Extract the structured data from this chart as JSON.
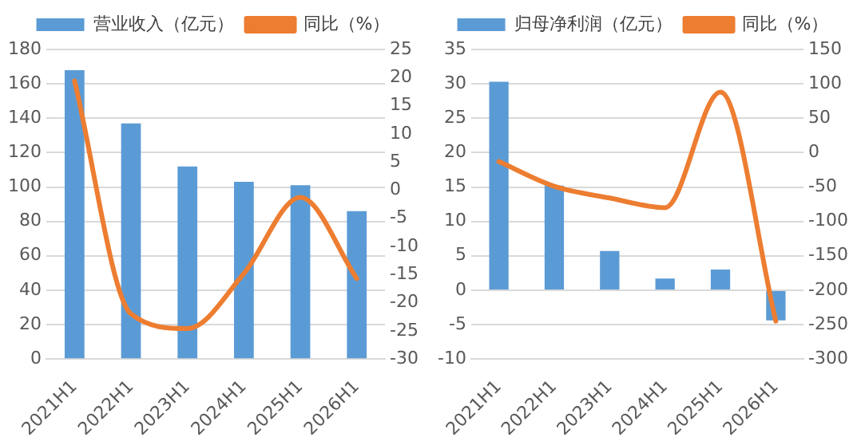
{
  "chart_data": [
    {
      "type": "bar",
      "categories": [
        "2021H1",
        "2022H1",
        "2023H1",
        "2024H1",
        "2025H1",
        "2026H1"
      ],
      "series": [
        {
          "name": "营业收入（亿元）",
          "color": "#5b9bd5",
          "values": [
            168,
            137,
            112,
            103,
            101,
            86
          ]
        },
        {
          "name": "同比（%）",
          "type": "line",
          "axis": "y2",
          "color": "#ed7d31",
          "values": [
            19.4,
            -22,
            -24.6,
            -14.8,
            -1.3,
            -15.7
          ]
        }
      ],
      "ylim": [
        0,
        180
      ],
      "yticks": [
        0,
        20,
        40,
        60,
        80,
        100,
        120,
        140,
        160,
        180
      ],
      "y2lim": [
        -30,
        25
      ],
      "y2ticks": [
        -30,
        -25,
        -20,
        -15,
        -10,
        -5,
        0,
        5,
        10,
        15,
        20,
        25
      ],
      "grid": "y",
      "legend": "top",
      "marker": "none",
      "line_style": "solid"
    },
    {
      "type": "bar",
      "categories": [
        "2021H1",
        "2022H1",
        "2023H1",
        "2024H1",
        "2025H1",
        "2026H1"
      ],
      "series": [
        {
          "name": "归母净利润（亿元）",
          "color": "#5b9bd5",
          "values": [
            30.3,
            15.2,
            5.7,
            1.7,
            3.0,
            -4.4
          ]
        },
        {
          "name": "同比（%）",
          "type": "line",
          "axis": "y2",
          "color": "#ed7d31",
          "values": [
            -13,
            -49,
            -66,
            -80,
            88,
            -245
          ]
        }
      ],
      "ylim": [
        -10,
        35
      ],
      "yticks": [
        -10,
        -5,
        0,
        5,
        10,
        15,
        20,
        25,
        30,
        35
      ],
      "y2lim": [
        -300,
        150
      ],
      "y2ticks": [
        -300,
        -250,
        -200,
        -150,
        -100,
        -50,
        0,
        50,
        100,
        150
      ],
      "grid": "y",
      "legend": "top",
      "marker": "none",
      "line_style": "solid"
    }
  ]
}
